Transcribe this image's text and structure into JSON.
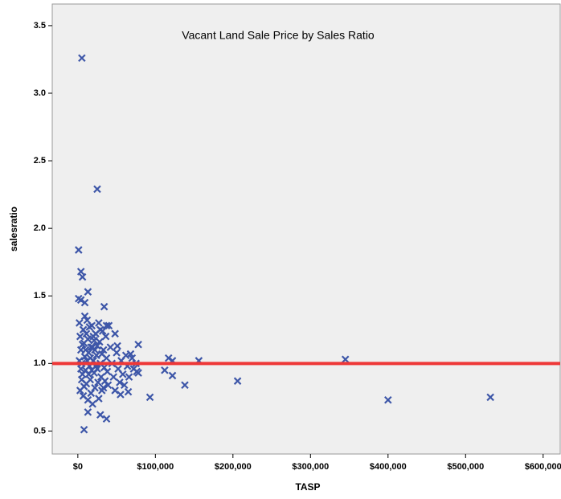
{
  "chart_data": {
    "type": "scatter",
    "title": "Vacant Land Sale Price by Sales Ratio",
    "x_label": "TASP",
    "y_label": "salesratio",
    "color": "#3d56a8",
    "plot_background": "#efefef",
    "xlim": [
      -33000,
      622000
    ],
    "ylim": [
      0.33,
      3.66
    ],
    "xticks": [
      {
        "value": 0,
        "label": "$0"
      },
      {
        "value": 100000,
        "label": "$100,000"
      },
      {
        "value": 200000,
        "label": "$200,000"
      },
      {
        "value": 300000,
        "label": "$300,000"
      },
      {
        "value": 400000,
        "label": "$400,000"
      },
      {
        "value": 500000,
        "label": "$500,000"
      },
      {
        "value": 600000,
        "label": "$600,000"
      }
    ],
    "yticks": [
      0.5,
      {
        "value": 1,
        "label": "1.0"
      },
      1.5,
      {
        "value": 2,
        "label": "2.0"
      },
      2.5,
      {
        "value": 3,
        "label": "3.0"
      },
      3.5
    ],
    "reference_line": {
      "value": 1,
      "color": "#ee3838"
    },
    "series": [
      {
        "x": [
          5200,
          25000,
          1000,
          4000,
          6000,
          13000,
          1000,
          4000,
          34000,
          9000,
          117000,
          122000,
          112000,
          122000,
          138000,
          156000,
          206000,
          345000,
          400000,
          532000,
          93000,
          8000,
          37000,
          29000,
          13000,
          78000,
          76000,
          68000,
          65000,
          55000,
          48000,
          51000,
          37000,
          2000,
          3000,
          4000,
          5000,
          6000,
          7000,
          8000,
          9000,
          10000,
          11000,
          12000,
          13000,
          14000,
          15000,
          16000,
          17000,
          18000,
          19000,
          20000,
          21000,
          22000,
          23000,
          24000,
          25000,
          26000,
          27000,
          28000,
          29000,
          30000,
          31000,
          32000,
          33000,
          34000,
          35000,
          36000,
          37000,
          38000,
          39000,
          40000,
          42000,
          44000,
          46000,
          48000,
          50000,
          52000,
          54000,
          56000,
          58000,
          60000,
          62000,
          64000,
          66000,
          70000,
          72000,
          75000,
          78000,
          3000,
          5000,
          7000,
          9000,
          11000,
          13000,
          15000,
          17000,
          19000,
          21000,
          23000,
          25000,
          27000,
          29000,
          31000,
          33000,
          2000,
          4000,
          6000,
          8000,
          10000,
          12000,
          14000,
          16000,
          18000,
          20000,
          22000
        ],
        "y": [
          3.26,
          2.29,
          1.84,
          1.68,
          1.64,
          1.53,
          1.48,
          1.47,
          1.42,
          1.45,
          1.04,
          1.02,
          0.95,
          0.91,
          0.84,
          1.02,
          0.87,
          1.03,
          0.73,
          0.75,
          0.75,
          0.51,
          0.59,
          0.62,
          0.64,
          1.14,
          0.94,
          1.07,
          0.79,
          0.77,
          1.22,
          1.13,
          1.28,
          1.3,
          1.2,
          1.1,
          1.0,
          0.92,
          1.25,
          1.15,
          1.05,
          0.95,
          0.85,
          1.32,
          1.18,
          1.08,
          0.98,
          0.88,
          0.78,
          1.28,
          1.12,
          1.02,
          0.93,
          0.82,
          1.22,
          1.06,
          0.96,
          0.86,
          1.3,
          1.16,
          1.0,
          0.9,
          0.8,
          1.24,
          1.1,
          0.97,
          0.87,
          1.2,
          1.04,
          0.94,
          0.84,
          1.28,
          1.12,
          1.0,
          0.9,
          0.8,
          1.08,
          0.96,
          0.86,
          1.02,
          0.92,
          0.84,
          1.06,
          0.98,
          0.9,
          1.04,
          0.96,
          1.0,
          0.93,
          0.8,
          0.88,
          0.76,
          1.35,
          1.22,
          0.73,
          1.27,
          1.12,
          0.7,
          1.17,
          0.98,
          1.13,
          0.74,
          1.25,
          1.07,
          0.82,
          1.02,
          0.96,
          1.14,
          0.83,
          1.1,
          1.02,
          0.92,
          1.04,
          0.95,
          1.2,
          1.1
        ]
      }
    ]
  }
}
